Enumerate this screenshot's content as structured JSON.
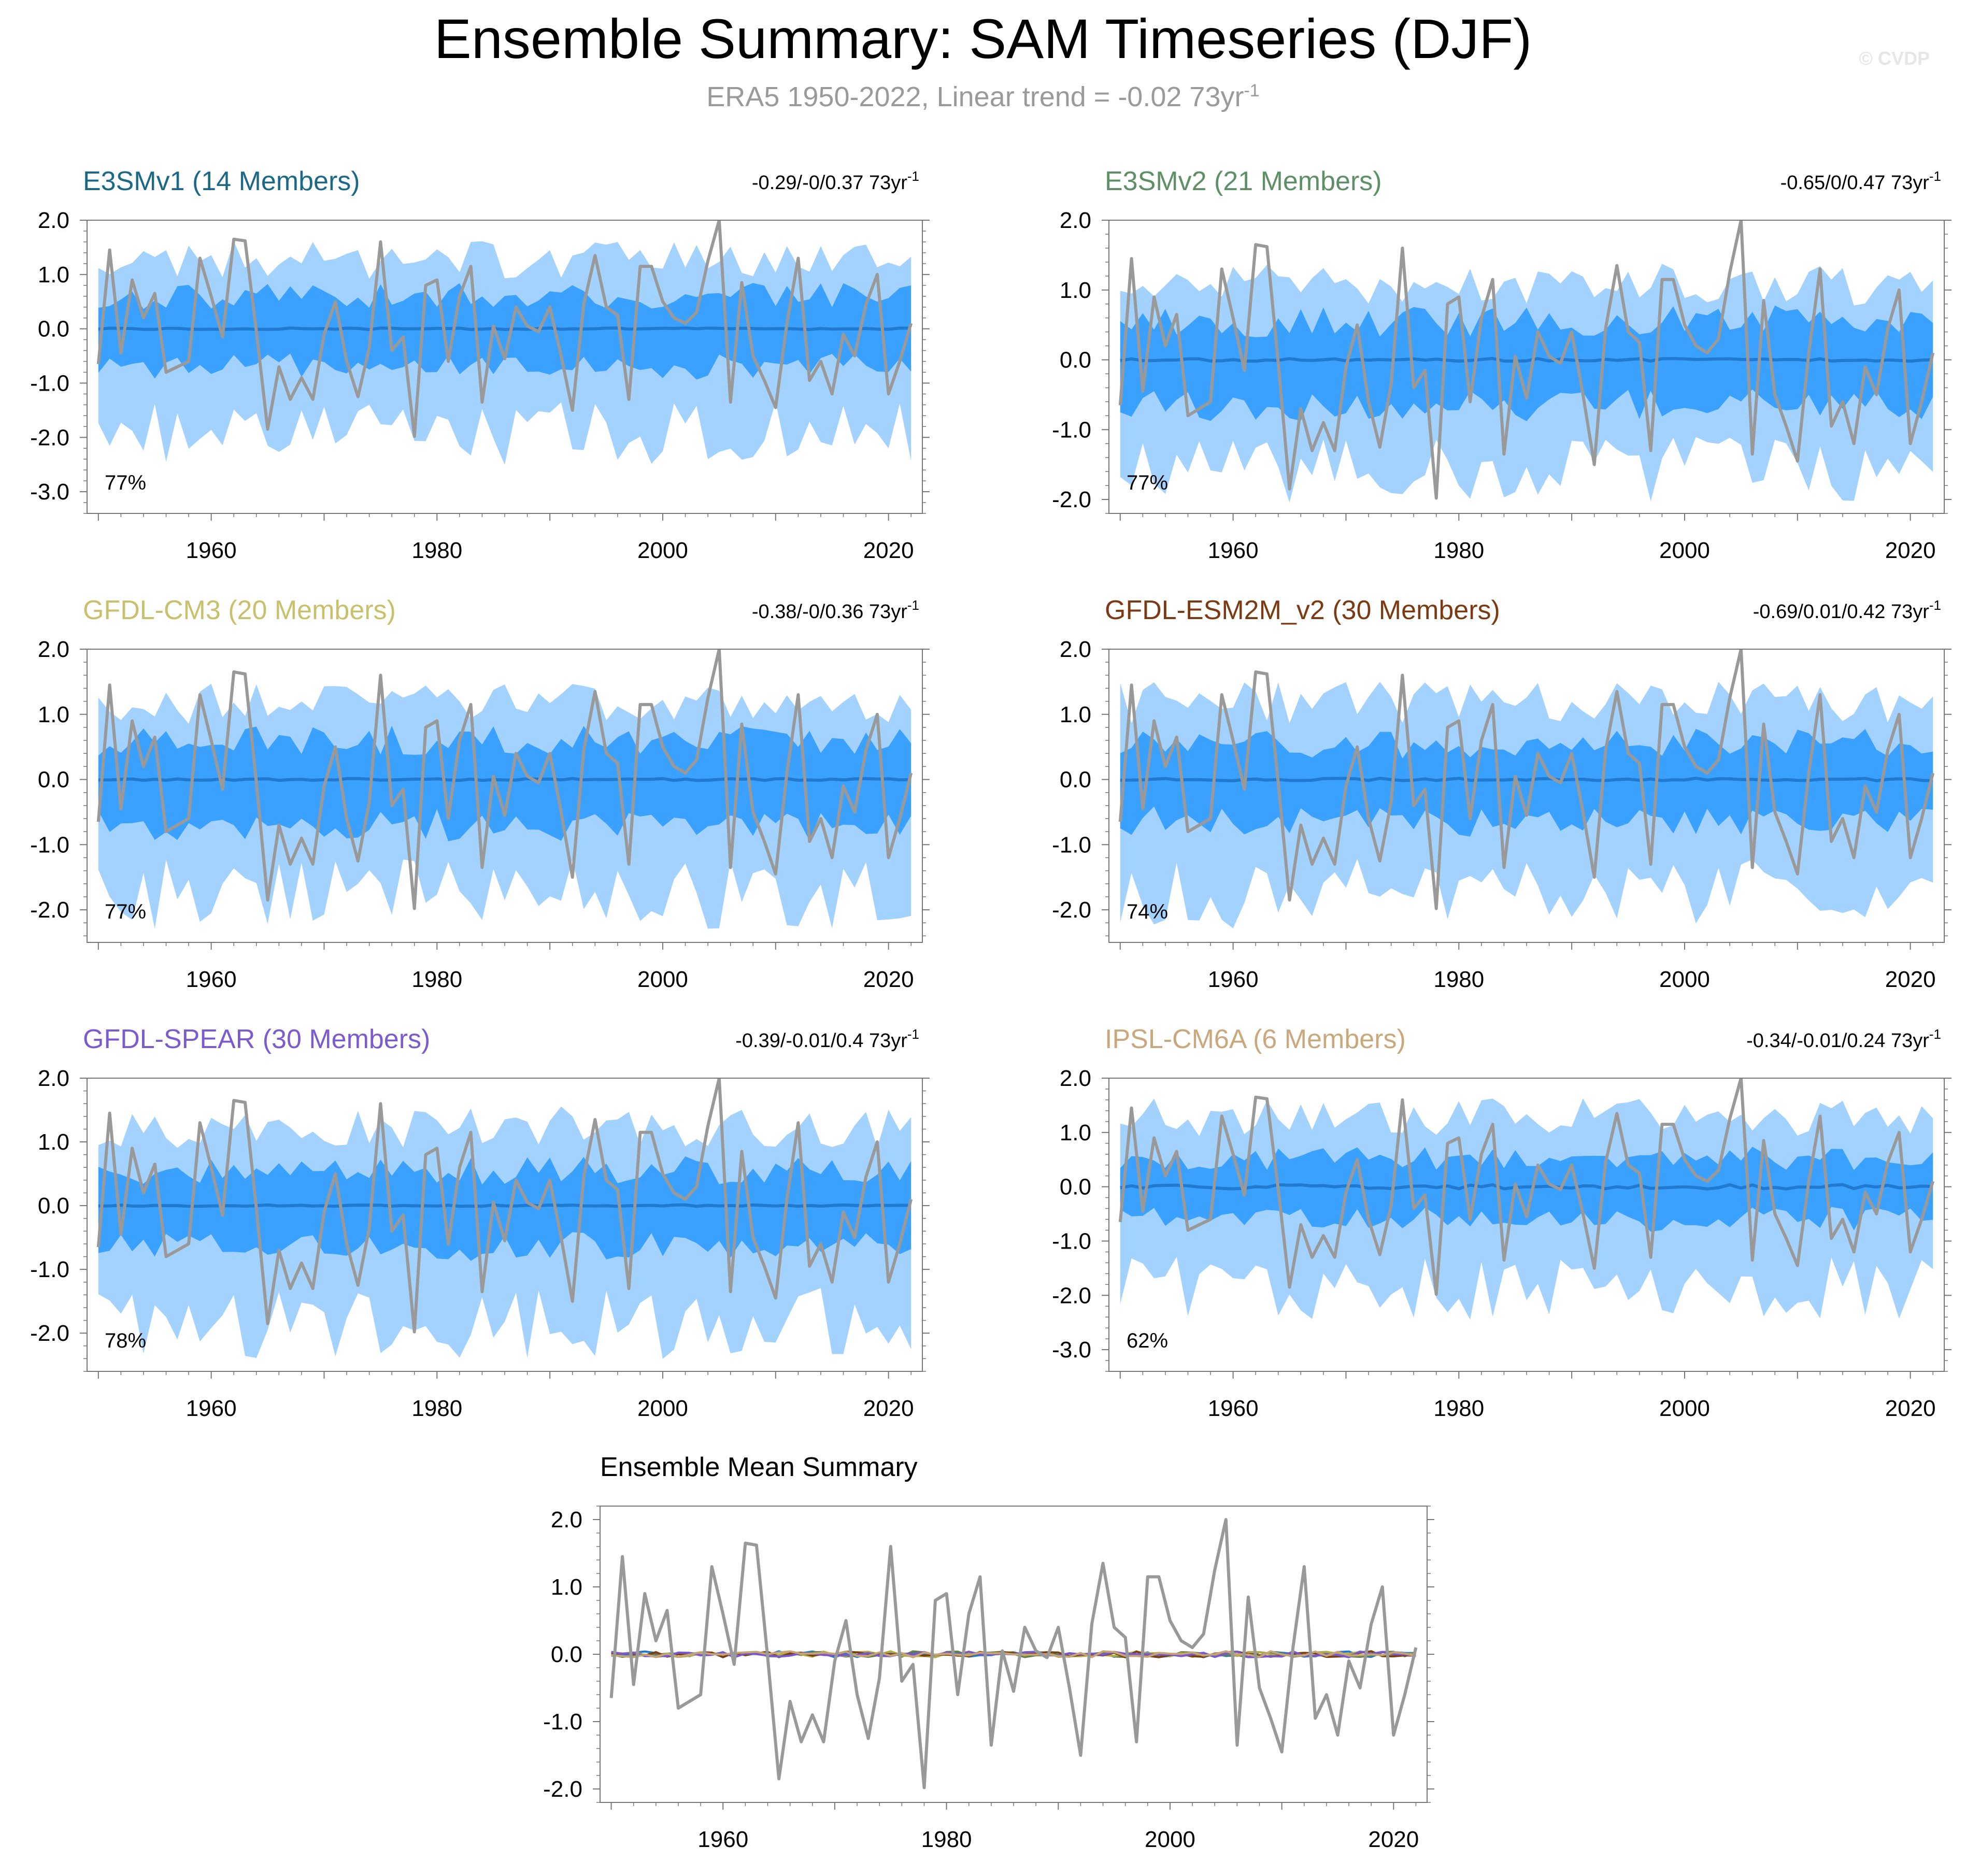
{
  "figure": {
    "title": "Ensemble Summary: SAM Timeseries (DJF)",
    "subtitle_prefix": "ERA5 1950-2022, Linear trend = -0.02 73yr",
    "subtitle_sup": "-1",
    "copyright": "© CVDP"
  },
  "colors": {
    "band_outer": "#a4d2ff",
    "band_inner": "#3ba1ff",
    "ensemble_mean": "#1f7ad0",
    "observations": "#999999",
    "frame": "#777777",
    "ensemble_mean_lines": [
      "#1f7ad0",
      "#63804a",
      "#b1ac49",
      "#7b4012",
      "#7957d0",
      "#c6a475"
    ]
  },
  "chart_data": [
    {
      "type": "area",
      "id": "e3smv1",
      "title": "E3SMv1 (14 Members)",
      "title_color": "#1b6987",
      "trend_text": "-0.29/-0/0.37 73yr",
      "trend_sup": "-1",
      "percent": "77%",
      "x_range": [
        1949,
        2023
      ],
      "ylim": [
        -3.4,
        2.0
      ],
      "y_ticks": [
        2.0,
        1.0,
        0.0,
        -1.0,
        -2.0,
        -3.0
      ],
      "y_tick_labels": [
        "2.0",
        "1.0",
        "0.0",
        "-1.0",
        "-2.0",
        "-3.0"
      ],
      "x_ticks": [
        1960,
        1980,
        2000,
        2020
      ],
      "x_tick_labels": [
        "1960",
        "1980",
        "2000",
        "2020"
      ],
      "outer_scale": 1.25,
      "inner_scale": 0.65,
      "mean_amp": 0.015,
      "seed": 11
    },
    {
      "type": "area",
      "id": "e3smv2",
      "title": "E3SMv2 (21 Members)",
      "title_color": "#5e8f67",
      "trend_text": "-0.65/0/0.47 73yr",
      "trend_sup": "-1",
      "percent": "77%",
      "x_range": [
        1949,
        2023
      ],
      "ylim": [
        -2.2,
        2.0
      ],
      "y_ticks": [
        2.0,
        1.0,
        0.0,
        -1.0,
        -2.0
      ],
      "y_tick_labels": [
        "2.0",
        "1.0",
        "0.0",
        "-1.0",
        "-2.0"
      ],
      "x_ticks": [
        1960,
        1980,
        2000,
        2020
      ],
      "x_tick_labels": [
        "1960",
        "1980",
        "2000",
        "2020"
      ],
      "outer_scale": 1.05,
      "inner_scale": 0.6,
      "mean_amp": 0.02,
      "seed": 23
    },
    {
      "type": "area",
      "id": "gfdl-cm3",
      "title": "GFDL-CM3 (20 Members)",
      "title_color": "#c8c06d",
      "trend_text": "-0.38/-0/0.36 73yr",
      "trend_sup": "-1",
      "percent": "77%",
      "x_range": [
        1949,
        2023
      ],
      "ylim": [
        -2.5,
        2.0
      ],
      "y_ticks": [
        2.0,
        1.0,
        0.0,
        -1.0,
        -2.0
      ],
      "y_tick_labels": [
        "2.0",
        "1.0",
        "0.0",
        "-1.0",
        "-2.0"
      ],
      "x_ticks": [
        1960,
        1980,
        2000,
        2020
      ],
      "x_tick_labels": [
        "1960",
        "1980",
        "2000",
        "2020"
      ],
      "outer_scale": 1.15,
      "inner_scale": 0.65,
      "mean_amp": 0.015,
      "seed": 37
    },
    {
      "type": "area",
      "id": "gfdl-esm2m",
      "title": "GFDL-ESM2M_v2 (30 Members)",
      "title_color": "#7b3a12",
      "trend_text": "-0.69/0.01/0.42 73yr",
      "trend_sup": "-1",
      "percent": "74%",
      "x_range": [
        1949,
        2023
      ],
      "ylim": [
        -2.5,
        2.0
      ],
      "y_ticks": [
        2.0,
        1.0,
        0.0,
        -1.0,
        -2.0
      ],
      "y_tick_labels": [
        "2.0",
        "1.0",
        "0.0",
        "-1.0",
        "-2.0"
      ],
      "x_ticks": [
        1960,
        1980,
        2000,
        2020
      ],
      "x_tick_labels": [
        "1960",
        "1980",
        "2000",
        "2020"
      ],
      "outer_scale": 1.15,
      "inner_scale": 0.6,
      "mean_amp": 0.02,
      "seed": 41
    },
    {
      "type": "area",
      "id": "gfdl-spear",
      "title": "GFDL-SPEAR (30 Members)",
      "title_color": "#7b5bd0",
      "trend_text": "-0.39/-0.01/0.4 73yr",
      "trend_sup": "-1",
      "percent": "78%",
      "x_range": [
        1949,
        2023
      ],
      "ylim": [
        -2.6,
        2.0
      ],
      "y_ticks": [
        2.0,
        1.0,
        0.0,
        -1.0,
        -2.0
      ],
      "y_tick_labels": [
        "2.0",
        "1.0",
        "0.0",
        "-1.0",
        "-2.0"
      ],
      "x_ticks": [
        1960,
        1980,
        2000,
        2020
      ],
      "x_tick_labels": [
        "1960",
        "1980",
        "2000",
        "2020"
      ],
      "outer_scale": 1.2,
      "inner_scale": 0.6,
      "mean_amp": 0.012,
      "seed": 53
    },
    {
      "type": "area",
      "id": "ipsl-cm6a",
      "title": "IPSL-CM6A (6 Members)",
      "title_color": "#c8a87c",
      "trend_text": "-0.34/-0.01/0.24 73yr",
      "trend_sup": "-1",
      "percent": "62%",
      "x_range": [
        1949,
        2023
      ],
      "ylim": [
        -3.4,
        2.0
      ],
      "y_ticks": [
        2.0,
        1.0,
        0.0,
        -1.0,
        -2.0,
        -3.0
      ],
      "y_tick_labels": [
        "2.0",
        "1.0",
        "0.0",
        "-1.0",
        "-2.0",
        "-3.0"
      ],
      "x_ticks": [
        1960,
        1980,
        2000,
        2020
      ],
      "x_tick_labels": [
        "1960",
        "1980",
        "2000",
        "2020"
      ],
      "outer_scale": 1.25,
      "inner_scale": 0.55,
      "mean_amp": 0.04,
      "seed": 67
    },
    {
      "type": "line",
      "id": "ensemble-mean-summary",
      "title": "Ensemble Mean Summary",
      "title_color": "#000000",
      "x_range": [
        1949,
        2023
      ],
      "ylim": [
        -2.2,
        2.2
      ],
      "y_ticks": [
        2.0,
        1.0,
        0.0,
        -1.0,
        -2.0
      ],
      "y_tick_labels": [
        "2.0",
        "1.0",
        "0.0",
        "-1.0",
        "-2.0"
      ],
      "x_ticks": [
        1960,
        1980,
        2000,
        2020
      ],
      "x_tick_labels": [
        "1960",
        "1980",
        "2000",
        "2020"
      ],
      "seed": 89
    }
  ],
  "observations": {
    "name": "ERA5",
    "x": [
      1950,
      1951,
      1952,
      1953,
      1954,
      1955,
      1956,
      1957,
      1958,
      1959,
      1960,
      1961,
      1962,
      1963,
      1964,
      1965,
      1966,
      1967,
      1968,
      1969,
      1970,
      1971,
      1972,
      1973,
      1974,
      1975,
      1976,
      1977,
      1978,
      1979,
      1980,
      1981,
      1982,
      1983,
      1984,
      1985,
      1986,
      1987,
      1988,
      1989,
      1990,
      1991,
      1992,
      1993,
      1994,
      1995,
      1996,
      1997,
      1998,
      1999,
      2000,
      2001,
      2002,
      2003,
      2004,
      2005,
      2006,
      2007,
      2008,
      2009,
      2010,
      2011,
      2012,
      2013,
      2014,
      2015,
      2016,
      2017,
      2018,
      2019,
      2020,
      2021,
      2022
    ],
    "y": [
      -0.65,
      1.45,
      -0.45,
      0.9,
      0.2,
      0.65,
      -0.8,
      -0.7,
      -0.6,
      1.3,
      0.6,
      -0.15,
      1.65,
      1.62,
      -0.05,
      -1.85,
      -0.7,
      -1.3,
      -0.9,
      -1.3,
      -0.1,
      0.5,
      -0.6,
      -1.25,
      -0.35,
      1.6,
      -0.4,
      -0.15,
      -1.98,
      0.8,
      0.9,
      -0.6,
      0.6,
      1.15,
      -1.35,
      0.05,
      -0.55,
      0.4,
      0.05,
      -0.05,
      0.4,
      -0.5,
      -1.5,
      0.45,
      1.35,
      0.4,
      0.25,
      -1.3,
      1.15,
      1.15,
      0.5,
      0.2,
      0.1,
      0.3,
      1.25,
      2.0,
      -1.35,
      0.85,
      -0.5,
      -0.95,
      -1.45,
      0.1,
      1.3,
      -0.95,
      -0.6,
      -1.2,
      -0.1,
      -0.5,
      0.45,
      1.0,
      -1.2,
      -0.6,
      0.1
    ]
  }
}
